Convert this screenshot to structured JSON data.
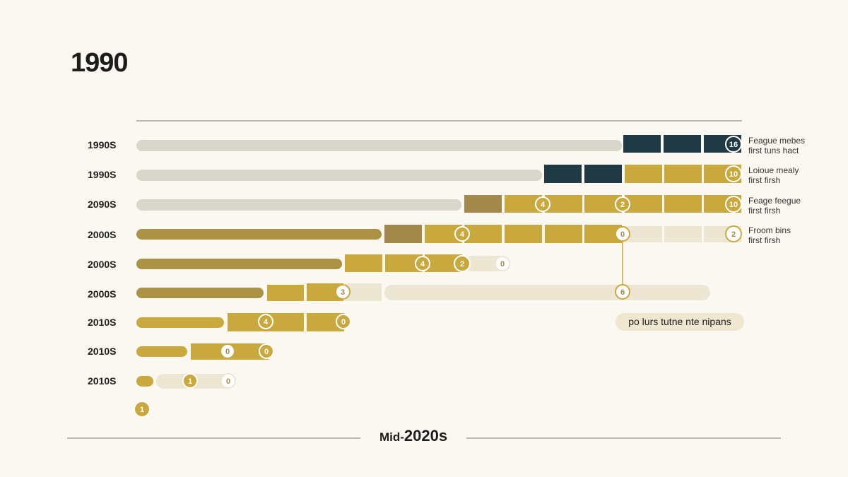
{
  "page": {
    "title": "1990",
    "footer_prefix": "Mid-",
    "footer_main": "2020s"
  },
  "colors": {
    "background": "#faf8f0",
    "track": "#d9d6cc",
    "navy": "#1f3a45",
    "gold": "#c9a93e",
    "olive": "#ab9245",
    "tan": "#a38a4c",
    "cream": "#ede6d3",
    "text": "#1d1d1b"
  },
  "chart_data": {
    "type": "bar",
    "rows": [
      {
        "label": "1990S",
        "badges": [
          "16"
        ],
        "note": [
          "Feague mebes",
          "first tuns hact"
        ]
      },
      {
        "label": "1990S",
        "badges": [
          "10"
        ],
        "note": [
          "Loioue mealy",
          "first firsh"
        ]
      },
      {
        "label": "2090S",
        "badges": [
          "4",
          "2",
          "10"
        ],
        "note": [
          "Feage feegue",
          "first firsh"
        ]
      },
      {
        "label": "2000S",
        "badges": [
          "4",
          "0",
          "2"
        ],
        "note": [
          "Froom bins",
          "first firsh"
        ]
      },
      {
        "label": "2000S",
        "badges": [
          "4",
          "2",
          "0"
        ],
        "note": []
      },
      {
        "label": "2000S",
        "badges": [
          "3",
          "6"
        ],
        "note": []
      },
      {
        "label": "2010S",
        "badges": [
          "4",
          "0"
        ],
        "note": []
      },
      {
        "label": "2010S",
        "badges": [
          "0",
          "0"
        ],
        "note": []
      },
      {
        "label": "2010S",
        "badges": [
          "1",
          "0"
        ],
        "note": []
      }
    ],
    "bottom_badge": "1",
    "callout": "po lurs tutne nte nipans"
  }
}
